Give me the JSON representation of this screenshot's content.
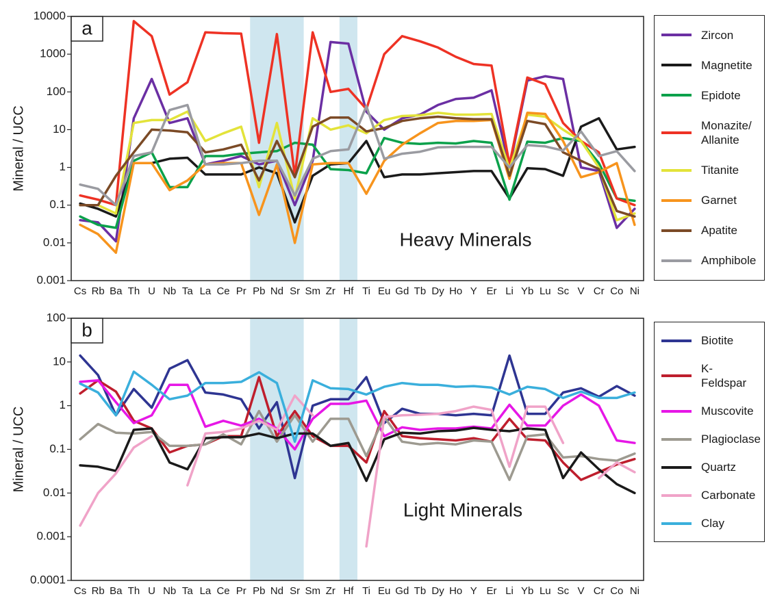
{
  "chart_data": [
    {
      "type": "line",
      "panel_label": "a",
      "y_label": "Mineral / UCC",
      "annotation": "Heavy Minerals",
      "log_scale": true,
      "legend": "right",
      "ylim": [
        0.001,
        10000
      ],
      "yticks": [
        0.001,
        0.01,
        0.1,
        1,
        10,
        100,
        1000,
        10000
      ],
      "categories": [
        "Cs",
        "Rb",
        "Ba",
        "Th",
        "U",
        "Nb",
        "Ta",
        "La",
        "Ce",
        "Pr",
        "Pb",
        "Nd",
        "Sr",
        "Sm",
        "Zr",
        "Hf",
        "Ti",
        "Eu",
        "Gd",
        "Tb",
        "Dy",
        "Ho",
        "Y",
        "Er",
        "Li",
        "Yb",
        "Lu",
        "Sc",
        "V",
        "Cr",
        "Co",
        "Ni"
      ],
      "series": [
        {
          "name": "Zircon",
          "color": "#6b2fa3",
          "values": [
            0.04,
            0.035,
            0.011,
            20,
            220,
            15,
            20,
            1.2,
            1.5,
            2,
            1.2,
            1.5,
            0.1,
            1.5,
            2100,
            1900,
            30,
            10,
            20,
            25,
            45,
            65,
            70,
            110,
            1,
            200,
            260,
            220,
            1,
            0.8,
            0.025,
            0.08
          ]
        },
        {
          "name": "Magnetite",
          "color": "#1a1a1a",
          "values": [
            0.11,
            0.08,
            0.05,
            1.3,
            1.3,
            1.7,
            1.8,
            0.65,
            0.65,
            0.65,
            1,
            0.7,
            0.035,
            0.6,
            1.2,
            1.3,
            5,
            0.55,
            0.65,
            0.65,
            0.7,
            0.75,
            0.8,
            0.8,
            0.15,
            0.95,
            0.9,
            0.6,
            12,
            20,
            3,
            3.5
          ]
        },
        {
          "name": "Epidote",
          "color": "#0ba14b",
          "values": [
            0.05,
            0.03,
            0.025,
            1.5,
            2.5,
            0.3,
            0.3,
            2,
            2,
            2.3,
            2.5,
            2.7,
            4.5,
            4,
            0.9,
            0.85,
            0.7,
            6,
            4.5,
            4.2,
            4.5,
            4.3,
            5,
            4.5,
            0.14,
            4.8,
            4.5,
            6,
            5,
            1.3,
            0.15,
            0.13
          ]
        },
        {
          "name": "Monazite/ Allanite",
          "color": "#ee3224",
          "values": [
            0.18,
            0.14,
            0.1,
            7500,
            3000,
            85,
            180,
            3800,
            3600,
            3500,
            4.5,
            3400,
            0.6,
            3800,
            100,
            120,
            35,
            1000,
            3000,
            2200,
            1500,
            850,
            550,
            500,
            1.2,
            240,
            160,
            15,
            5,
            2.5,
            0.15,
            0.1
          ]
        },
        {
          "name": "Titanite",
          "color": "#e3e33a",
          "values": [
            0.1,
            0.1,
            0.06,
            15,
            18,
            18,
            30,
            5,
            8,
            12,
            0.3,
            15,
            0.15,
            20,
            10,
            13,
            8,
            18,
            23,
            24,
            28,
            25,
            25,
            26,
            0.9,
            25,
            22,
            10,
            5,
            1,
            0.04,
            0.06
          ]
        },
        {
          "name": "Garnet",
          "color": "#f7941d",
          "values": [
            0.03,
            0.017,
            0.0055,
            1.3,
            1.3,
            0.25,
            0.45,
            1.2,
            1.3,
            1.3,
            0.055,
            1.2,
            0.01,
            1.2,
            1.3,
            1.3,
            0.2,
            1.5,
            4,
            8,
            15,
            17,
            17,
            18,
            0.5,
            28,
            26,
            5,
            0.55,
            0.75,
            1.3,
            0.03
          ]
        },
        {
          "name": "Apatite",
          "color": "#7b4a26",
          "values": [
            0.1,
            0.1,
            0.6,
            2.5,
            10,
            9.5,
            8.5,
            2.5,
            3,
            4,
            0.45,
            5,
            0.55,
            12,
            21,
            21,
            9,
            11,
            17,
            20,
            22,
            20,
            19,
            19,
            0.6,
            17,
            14,
            2.5,
            1.5,
            0.9,
            0.07,
            0.05
          ]
        },
        {
          "name": "Amphibole",
          "color": "#9a9ba1",
          "values": [
            0.35,
            0.27,
            0.1,
            2,
            2.5,
            33,
            45,
            1.2,
            1.2,
            1.3,
            1.5,
            1.5,
            0.18,
            1.7,
            2.7,
            3,
            42,
            1.7,
            2.3,
            2.6,
            3.4,
            3.5,
            3.5,
            3.5,
            1,
            3.9,
            3.6,
            2.8,
            9,
            2,
            2.7,
            0.8
          ]
        }
      ]
    },
    {
      "type": "line",
      "panel_label": "b",
      "y_label": "Mineral / UCC",
      "annotation": "Light Minerals",
      "log_scale": true,
      "legend": "right",
      "ylim": [
        0.0001,
        100
      ],
      "yticks": [
        0.0001,
        0.001,
        0.01,
        0.1,
        1,
        10,
        100
      ],
      "categories": [
        "Cs",
        "Rb",
        "Ba",
        "Th",
        "U",
        "Nb",
        "Ta",
        "La",
        "Ce",
        "Pr",
        "Pb",
        "Nd",
        "Sr",
        "Sm",
        "Zr",
        "Hf",
        "Ti",
        "Eu",
        "Gd",
        "Tb",
        "Dy",
        "Ho",
        "Y",
        "Er",
        "Li",
        "Yb",
        "Lu",
        "Sc",
        "V",
        "Cr",
        "Co",
        "Ni"
      ],
      "series": [
        {
          "name": "Biotite",
          "color": "#2e3592",
          "values": [
            14,
            5,
            0.6,
            2.4,
            0.9,
            7,
            11,
            2,
            1.8,
            1.4,
            0.3,
            1.2,
            0.022,
            1,
            1.4,
            1.4,
            4.5,
            0.4,
            0.85,
            0.65,
            0.65,
            0.6,
            0.65,
            0.6,
            14,
            0.65,
            0.65,
            2,
            2.5,
            1.6,
            2.8,
            1.7
          ]
        },
        {
          "name": "K-Feldspar",
          "color": "#be1e2d",
          "values": [
            1.9,
            3.8,
            2.1,
            0.45,
            0.3,
            0.085,
            0.12,
            0.13,
            0.2,
            0.2,
            4.5,
            0.2,
            0.75,
            0.2,
            0.12,
            0.12,
            0.05,
            0.75,
            0.2,
            0.18,
            0.17,
            0.16,
            0.18,
            0.15,
            0.5,
            0.17,
            0.16,
            0.05,
            0.02,
            0.03,
            0.045,
            0.06
          ]
        },
        {
          "name": "Muscovite",
          "color": "#e617e6",
          "values": [
            3.5,
            3.8,
            1.2,
            0.4,
            0.6,
            3,
            3,
            0.33,
            0.45,
            0.35,
            0.5,
            0.3,
            0.1,
            0.5,
            1.1,
            1.1,
            1.3,
            0.2,
            0.32,
            0.28,
            0.3,
            0.3,
            0.33,
            0.3,
            1.05,
            0.35,
            0.35,
            1,
            1.8,
            1,
            0.16,
            0.14
          ]
        },
        {
          "name": "Plagioclase",
          "color": "#9d9a90",
          "values": [
            0.17,
            0.38,
            0.24,
            0.23,
            0.25,
            0.12,
            0.12,
            0.13,
            0.22,
            0.13,
            0.75,
            0.15,
            0.6,
            0.15,
            0.5,
            0.5,
            0.07,
            0.55,
            0.15,
            0.13,
            0.14,
            0.13,
            0.16,
            0.15,
            0.02,
            0.2,
            0.22,
            0.065,
            0.07,
            0.06,
            0.055,
            0.08
          ]
        },
        {
          "name": "Quartz",
          "color": "#1a1a1a",
          "values": [
            0.043,
            0.04,
            0.032,
            0.28,
            0.3,
            0.05,
            0.035,
            0.18,
            0.19,
            0.19,
            0.23,
            0.18,
            0.23,
            0.23,
            0.12,
            0.14,
            0.019,
            0.17,
            0.24,
            0.23,
            0.26,
            0.27,
            0.31,
            0.28,
            0.26,
            0.3,
            0.28,
            0.022,
            0.085,
            0.035,
            0.016,
            0.01
          ]
        },
        {
          "name": "Carbonate",
          "color": "#f0a3c8",
          "values": [
            0.0018,
            0.01,
            0.028,
            0.11,
            0.2,
            null,
            0.015,
            0.23,
            0.25,
            0.3,
            0.45,
            0.28,
            1.7,
            0.6,
            null,
            null,
            0.0006,
            0.55,
            0.6,
            0.62,
            0.65,
            0.75,
            0.95,
            0.8,
            0.04,
            0.95,
            0.95,
            0.14,
            null,
            0.022,
            0.05,
            0.03
          ]
        },
        {
          "name": "Clay",
          "color": "#3aafdc",
          "values": [
            3.2,
            2,
            0.6,
            6,
            3,
            1.4,
            1.7,
            3.3,
            3.3,
            3.5,
            5.8,
            3.3,
            0.15,
            3.8,
            2.5,
            2.4,
            1.8,
            2.7,
            3.3,
            3,
            3,
            2.7,
            2.8,
            2.6,
            1.8,
            2.7,
            2.4,
            1.5,
            2.1,
            1.5,
            1.5,
            2
          ]
        }
      ]
    }
  ]
}
